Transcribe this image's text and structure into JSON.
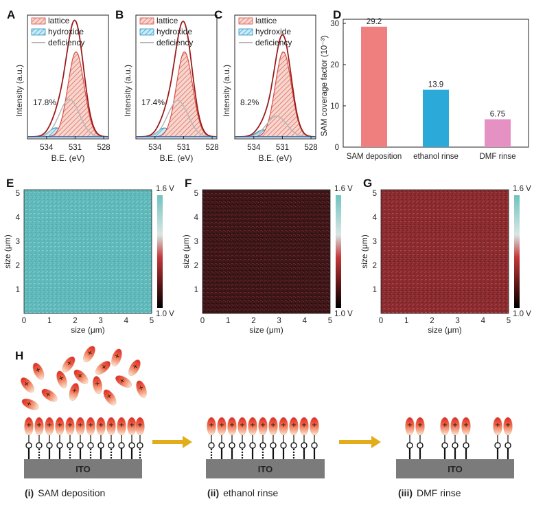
{
  "panels": {
    "A": {
      "label": "A",
      "percent": "17.8%",
      "area_scale": 1.0
    },
    "B": {
      "label": "B",
      "percent": "17.4%",
      "area_scale": 0.97
    },
    "C": {
      "label": "C",
      "percent": "8.2%",
      "area_scale": 0.55
    }
  },
  "xps_common": {
    "legend": [
      "lattice",
      "hydroxide",
      "deficiency"
    ],
    "xlabel": "B.E. (eV)",
    "ylabel": "Intensity (a.u.)",
    "xticks": [
      "534",
      "531",
      "528"
    ],
    "xrange": [
      536,
      527.5
    ]
  },
  "chart_data": [
    {
      "type": "bar",
      "panel": "D",
      "categories": [
        "SAM deposition",
        "ethanol rinse",
        "DMF rinse"
      ],
      "values": [
        29.2,
        13.9,
        6.75
      ],
      "value_labels": [
        "29.2",
        "13.9",
        "6.75"
      ],
      "colors": [
        "#ef7e7e",
        "#2ba9d8",
        "#e691c4"
      ],
      "ylabel": "SAM coverage factor (10⁻³)",
      "ylim": [
        0,
        31
      ],
      "yticks": [
        "0",
        "10",
        "20",
        "30"
      ]
    }
  ],
  "maps": {
    "E": {
      "label": "E",
      "tint": "#5fb8ba",
      "vmax": "1.6 V",
      "vmin": "1.0 V"
    },
    "F": {
      "label": "F",
      "tint": "#3a1618",
      "vmax": "1.6 V",
      "vmin": "1.0 V"
    },
    "G": {
      "label": "G",
      "tint": "#8a2c2f",
      "vmax": "1.6 V",
      "vmin": "1.0 V"
    },
    "ticks": [
      "0",
      "1",
      "2",
      "3",
      "4",
      "5"
    ],
    "yticks": [
      "1",
      "2",
      "3",
      "4",
      "5"
    ],
    "xlabel": "size (μm)",
    "ylabel": "size (μm)"
  },
  "schematic": {
    "label": "H",
    "substrate": "ITO",
    "steps": [
      {
        "num": "(i)",
        "name": "SAM deposition"
      },
      {
        "num": "(ii)",
        "name": "ethanol rinse"
      },
      {
        "num": "(iii)",
        "name": "DMF rinse"
      }
    ],
    "arrow_color": "#e2ac1a"
  }
}
